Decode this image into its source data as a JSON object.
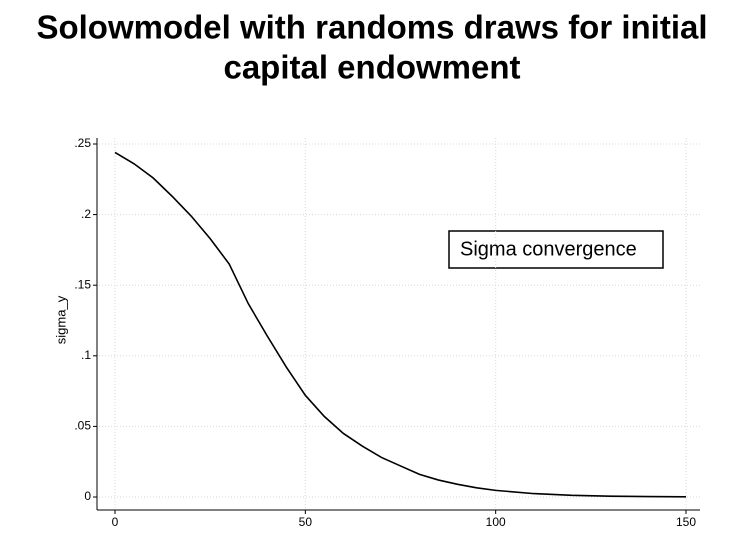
{
  "chart_data": {
    "type": "line",
    "title": [
      "Solowmodel with randoms draws for initial",
      "capital endowment"
    ],
    "ylabel": "sigma_y",
    "annotation": "Sigma convergence",
    "x": [
      0,
      5,
      10,
      15,
      20,
      25,
      30,
      35,
      40,
      45,
      50,
      55,
      60,
      65,
      70,
      75,
      80,
      85,
      90,
      95,
      100,
      110,
      120,
      130,
      140,
      150
    ],
    "values": [
      0.244,
      0.236,
      0.226,
      0.213,
      0.199,
      0.183,
      0.165,
      0.137,
      0.114,
      0.092,
      0.072,
      0.057,
      0.045,
      0.036,
      0.028,
      0.022,
      0.016,
      0.012,
      0.009,
      0.0065,
      0.0047,
      0.0024,
      0.0012,
      0.0006,
      0.0003,
      0.0001
    ],
    "color": "#000000",
    "xlim": [
      0,
      150
    ],
    "xticks": [
      0,
      50,
      100,
      150
    ],
    "ylim": [
      0,
      0.25
    ],
    "yticks": [
      0,
      {
        "value": 0.05,
        "label": ".05"
      },
      {
        "value": 0.1,
        "label": ".1"
      },
      {
        "value": 0.15,
        "label": ".15"
      },
      {
        "value": 0.2,
        "label": ".2"
      },
      {
        "value": 0.25,
        "label": ".25"
      }
    ],
    "grid": true
  }
}
